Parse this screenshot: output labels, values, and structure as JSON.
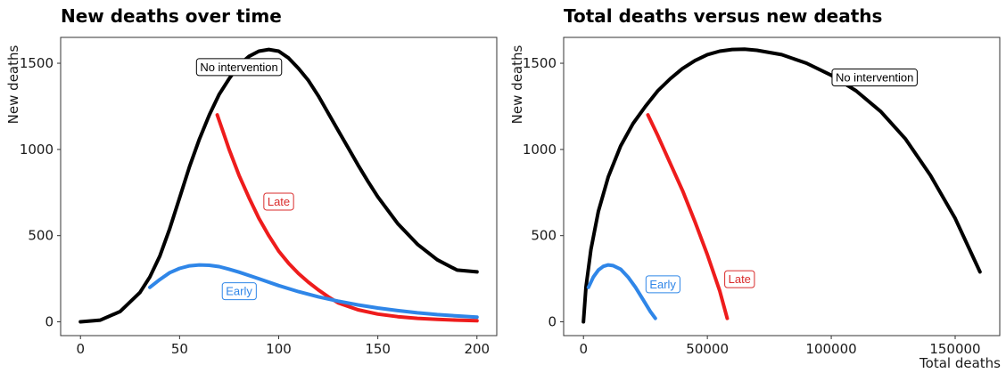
{
  "chart_data": [
    {
      "type": "line",
      "title": "New deaths over time",
      "xlabel": "",
      "ylabel": "New deaths",
      "xlim": [
        -10,
        210
      ],
      "ylim": [
        -80,
        1650
      ],
      "xticks": [
        0,
        50,
        100,
        150,
        200
      ],
      "yticks": [
        0,
        500,
        1000,
        1500
      ],
      "xtick_labels": [
        "0",
        "50",
        "100",
        "150",
        "200"
      ],
      "ytick_labels": [
        "0",
        "500",
        "1000",
        "1500"
      ],
      "grid": false,
      "series": [
        {
          "name": "No intervention",
          "color": "#000000",
          "x": [
            0,
            10,
            20,
            30,
            35,
            40,
            45,
            50,
            55,
            60,
            65,
            70,
            75,
            80,
            85,
            90,
            95,
            100,
            105,
            110,
            115,
            120,
            125,
            130,
            135,
            140,
            145,
            150,
            160,
            170,
            180,
            190,
            200
          ],
          "y": [
            0,
            10,
            60,
            170,
            260,
            380,
            540,
            720,
            900,
            1060,
            1200,
            1320,
            1410,
            1490,
            1540,
            1570,
            1580,
            1570,
            1530,
            1470,
            1400,
            1310,
            1210,
            1110,
            1010,
            910,
            815,
            725,
            570,
            450,
            360,
            300,
            290
          ]
        },
        {
          "name": "Late",
          "color": "#ee1c1c",
          "x": [
            69,
            72,
            75,
            80,
            85,
            90,
            95,
            100,
            105,
            110,
            115,
            120,
            125,
            130,
            140,
            150,
            160,
            170,
            180,
            190,
            200
          ],
          "y": [
            1200,
            1100,
            1000,
            850,
            720,
            600,
            500,
            410,
            340,
            280,
            230,
            185,
            145,
            110,
            70,
            45,
            30,
            20,
            14,
            10,
            6
          ]
        },
        {
          "name": "Early",
          "color": "#2f86e8",
          "x": [
            35,
            40,
            45,
            50,
            55,
            60,
            65,
            70,
            75,
            80,
            90,
            100,
            110,
            120,
            130,
            140,
            150,
            160,
            170,
            180,
            190,
            200
          ],
          "y": [
            200,
            245,
            285,
            310,
            325,
            330,
            328,
            320,
            305,
            288,
            250,
            210,
            175,
            145,
            120,
            98,
            80,
            65,
            52,
            42,
            34,
            27
          ]
        }
      ],
      "annotations": [
        {
          "text": "No intervention",
          "x": 80,
          "y": 1480,
          "color": "#000000"
        },
        {
          "text": "Late",
          "x": 100,
          "y": 700,
          "color": "#d92b2b"
        },
        {
          "text": "Early",
          "x": 80,
          "y": 180,
          "color": "#2f86e8"
        }
      ]
    },
    {
      "type": "line",
      "title": "Total deaths versus new deaths",
      "xlabel": "Total deaths",
      "ylabel": "New deaths",
      "xlim": [
        -8000,
        168000
      ],
      "ylim": [
        -80,
        1650
      ],
      "xticks": [
        0,
        50000,
        100000,
        150000
      ],
      "yticks": [
        0,
        500,
        1000,
        1500
      ],
      "xtick_labels": [
        "0",
        "50000",
        "100000",
        "150000"
      ],
      "ytick_labels": [
        "0",
        "500",
        "1000",
        "1500"
      ],
      "grid": false,
      "series": [
        {
          "name": "No intervention",
          "color": "#000000",
          "x": [
            0,
            1000,
            3000,
            6000,
            10000,
            15000,
            20000,
            25000,
            30000,
            35000,
            40000,
            45000,
            50000,
            55000,
            60000,
            65000,
            70000,
            80000,
            90000,
            100000,
            110000,
            120000,
            130000,
            140000,
            150000,
            160000
          ],
          "y": [
            0,
            200,
            420,
            640,
            840,
            1020,
            1150,
            1250,
            1340,
            1410,
            1470,
            1515,
            1550,
            1570,
            1580,
            1582,
            1575,
            1550,
            1500,
            1430,
            1340,
            1220,
            1060,
            850,
            600,
            290
          ]
        },
        {
          "name": "Late",
          "color": "#ee1c1c",
          "x": [
            26000,
            30000,
            35000,
            40000,
            45000,
            50000,
            55000,
            58000
          ],
          "y": [
            1200,
            1080,
            920,
            760,
            580,
            390,
            180,
            20
          ]
        },
        {
          "name": "Early",
          "color": "#2f86e8",
          "x": [
            2000,
            4000,
            6000,
            8000,
            10000,
            12000,
            15000,
            18000,
            21000,
            24000,
            27000,
            29000
          ],
          "y": [
            200,
            260,
            300,
            322,
            330,
            326,
            305,
            260,
            200,
            130,
            60,
            20
          ]
        }
      ],
      "annotations": [
        {
          "text": "No intervention",
          "x": 117500,
          "y": 1420,
          "color": "#000000"
        },
        {
          "text": "Late",
          "x": 63000,
          "y": 250,
          "color": "#d92b2b"
        },
        {
          "text": "Early",
          "x": 32000,
          "y": 220,
          "color": "#2f86e8"
        }
      ]
    }
  ]
}
